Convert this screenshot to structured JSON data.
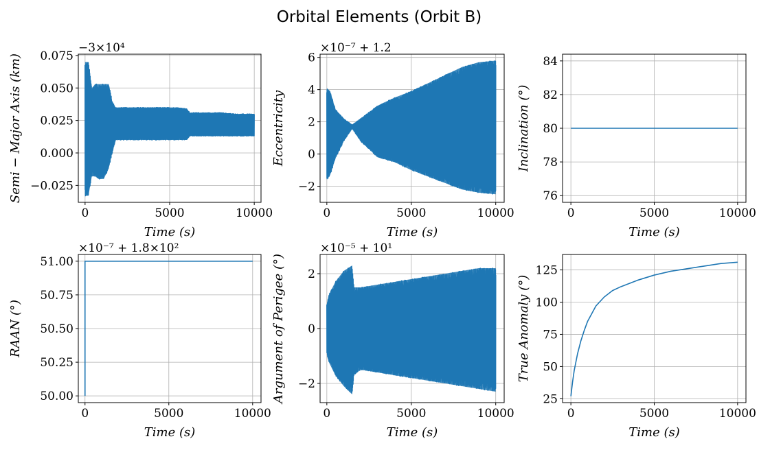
{
  "figure": {
    "title": "Orbital Elements (Orbit B)",
    "line_color": "#1f77b4",
    "grid_color": "#b0b0b0"
  },
  "chart_data": [
    {
      "type": "line",
      "id": "semi-major-axis",
      "xlabel": "Time (s)",
      "ylabel": "Semi − Major Axis (km)",
      "offset_text": "−3×10⁴",
      "xlim": [
        -400,
        10400
      ],
      "ylim": [
        -0.038,
        0.076
      ],
      "xticks": [
        0,
        5000,
        10000
      ],
      "xtick_labels": [
        "0",
        "5000",
        "10000"
      ],
      "yticks": [
        -0.025,
        0.0,
        0.025,
        0.05,
        0.075
      ],
      "ytick_labels": [
        "−0.025",
        "0.000",
        "0.025",
        "0.050",
        "0.075"
      ],
      "grid": true,
      "envelope": {
        "x": [
          0,
          50,
          200,
          400,
          600,
          800,
          1100,
          1400,
          1600,
          1800,
          2200,
          3000,
          4000,
          5000,
          5500,
          6000,
          6200,
          7000,
          8000,
          9000,
          10000
        ],
        "upper": [
          0.07,
          0.07,
          0.07,
          0.05,
          0.053,
          0.053,
          0.053,
          0.053,
          0.04,
          0.035,
          0.035,
          0.035,
          0.035,
          0.035,
          0.035,
          0.034,
          0.031,
          0.031,
          0.031,
          0.03,
          0.03
        ],
        "lower": [
          -0.033,
          -0.033,
          -0.033,
          -0.018,
          -0.018,
          -0.02,
          -0.02,
          -0.012,
          0.0,
          0.01,
          0.01,
          0.01,
          0.01,
          0.01,
          0.01,
          0.01,
          0.013,
          0.013,
          0.013,
          0.013,
          0.013
        ]
      }
    },
    {
      "type": "line",
      "id": "eccentricity",
      "xlabel": "Time (s)",
      "ylabel": "Eccentricity",
      "offset_text": "×10⁻⁷ + 1.2",
      "xlim": [
        -400,
        10500
      ],
      "ylim": [
        -3.0,
        6.2
      ],
      "xticks": [
        0,
        5000,
        10000
      ],
      "xtick_labels": [
        "0",
        "5000",
        "10000"
      ],
      "yticks": [
        -2,
        0,
        2,
        4,
        6
      ],
      "ytick_labels": [
        "−2",
        "0",
        "2",
        "4",
        "6"
      ],
      "grid": true,
      "envelope": {
        "x": [
          0,
          200,
          500,
          1000,
          1500,
          2000,
          3000,
          4000,
          5000,
          6000,
          7000,
          8000,
          9000,
          10000
        ],
        "upper": [
          4.1,
          3.9,
          2.8,
          2.2,
          1.8,
          2.2,
          3.0,
          3.5,
          3.9,
          4.4,
          4.9,
          5.4,
          5.7,
          5.8
        ],
        "lower": [
          -1.6,
          -1.3,
          -0.3,
          0.8,
          1.6,
          0.8,
          -0.2,
          -0.5,
          -1.0,
          -1.4,
          -1.8,
          -2.2,
          -2.4,
          -2.5
        ]
      }
    },
    {
      "type": "line",
      "id": "inclination",
      "xlabel": "Time (s)",
      "ylabel": "Inclination (°)",
      "offset_text": "",
      "xlim": [
        -500,
        10500
      ],
      "ylim": [
        75.6,
        84.4
      ],
      "xticks": [
        0,
        5000,
        10000
      ],
      "xtick_labels": [
        "0",
        "5000",
        "10000"
      ],
      "yticks": [
        76,
        78,
        80,
        82,
        84
      ],
      "ytick_labels": [
        "76",
        "78",
        "80",
        "82",
        "84"
      ],
      "grid": true,
      "x": [
        0,
        10000
      ],
      "y": [
        80,
        80
      ]
    },
    {
      "type": "line",
      "id": "raan",
      "xlabel": "Time (s)",
      "ylabel": "RAAN (°)",
      "offset_text": "×10⁻⁷ + 1.8×10²",
      "xlim": [
        -400,
        10500
      ],
      "ylim": [
        49.95,
        51.05
      ],
      "xticks": [
        0,
        5000,
        10000
      ],
      "xtick_labels": [
        "0",
        "5000",
        "10000"
      ],
      "yticks": [
        50.0,
        50.25,
        50.5,
        50.75,
        51.0
      ],
      "ytick_labels": [
        "50.00",
        "50.25",
        "50.50",
        "50.75",
        "51.00"
      ],
      "grid": true,
      "x": [
        0,
        0,
        10000
      ],
      "y": [
        50.0,
        51.0,
        51.0
      ]
    },
    {
      "type": "line",
      "id": "argument-of-perigee",
      "xlabel": "Time (s)",
      "ylabel": "Argument of Perigee (°)",
      "offset_text": "×10⁻⁵ + 10¹",
      "xlim": [
        -400,
        10500
      ],
      "ylim": [
        -2.7,
        2.7
      ],
      "xticks": [
        0,
        5000,
        10000
      ],
      "xtick_labels": [
        "0",
        "5000",
        "10000"
      ],
      "yticks": [
        -2,
        0,
        2
      ],
      "ytick_labels": [
        "−2",
        "0",
        "2"
      ],
      "grid": true,
      "envelope": {
        "x": [
          0,
          100,
          500,
          1000,
          1500,
          1600,
          2000,
          3000,
          4000,
          5000,
          6000,
          7000,
          8000,
          9000,
          10000
        ],
        "upper": [
          0.9,
          1.2,
          1.7,
          2.1,
          2.3,
          1.5,
          1.5,
          1.6,
          1.7,
          1.8,
          1.9,
          2.0,
          2.1,
          2.2,
          2.2
        ],
        "lower": [
          -0.9,
          -1.2,
          -1.7,
          -2.1,
          -2.4,
          -1.7,
          -1.5,
          -1.6,
          -1.7,
          -1.8,
          -1.9,
          -2.0,
          -2.1,
          -2.2,
          -2.3
        ]
      }
    },
    {
      "type": "line",
      "id": "true-anomaly",
      "xlabel": "Time (s)",
      "ylabel": "True Anomaly (°)",
      "offset_text": "",
      "xlim": [
        -500,
        10500
      ],
      "ylim": [
        22,
        137
      ],
      "xticks": [
        0,
        5000,
        10000
      ],
      "xtick_labels": [
        "0",
        "5000",
        "10000"
      ],
      "yticks": [
        25,
        50,
        75,
        100,
        125
      ],
      "ytick_labels": [
        "25",
        "50",
        "75",
        "100",
        "125"
      ],
      "grid": true,
      "x": [
        0,
        100,
        200,
        400,
        600,
        800,
        1000,
        1500,
        2000,
        2500,
        3000,
        4000,
        5000,
        6000,
        7000,
        8000,
        9000,
        10000
      ],
      "y": [
        27,
        38,
        47,
        60,
        70,
        78,
        85,
        97,
        104,
        109,
        112,
        117,
        121,
        124,
        126,
        128,
        130,
        131
      ]
    }
  ]
}
